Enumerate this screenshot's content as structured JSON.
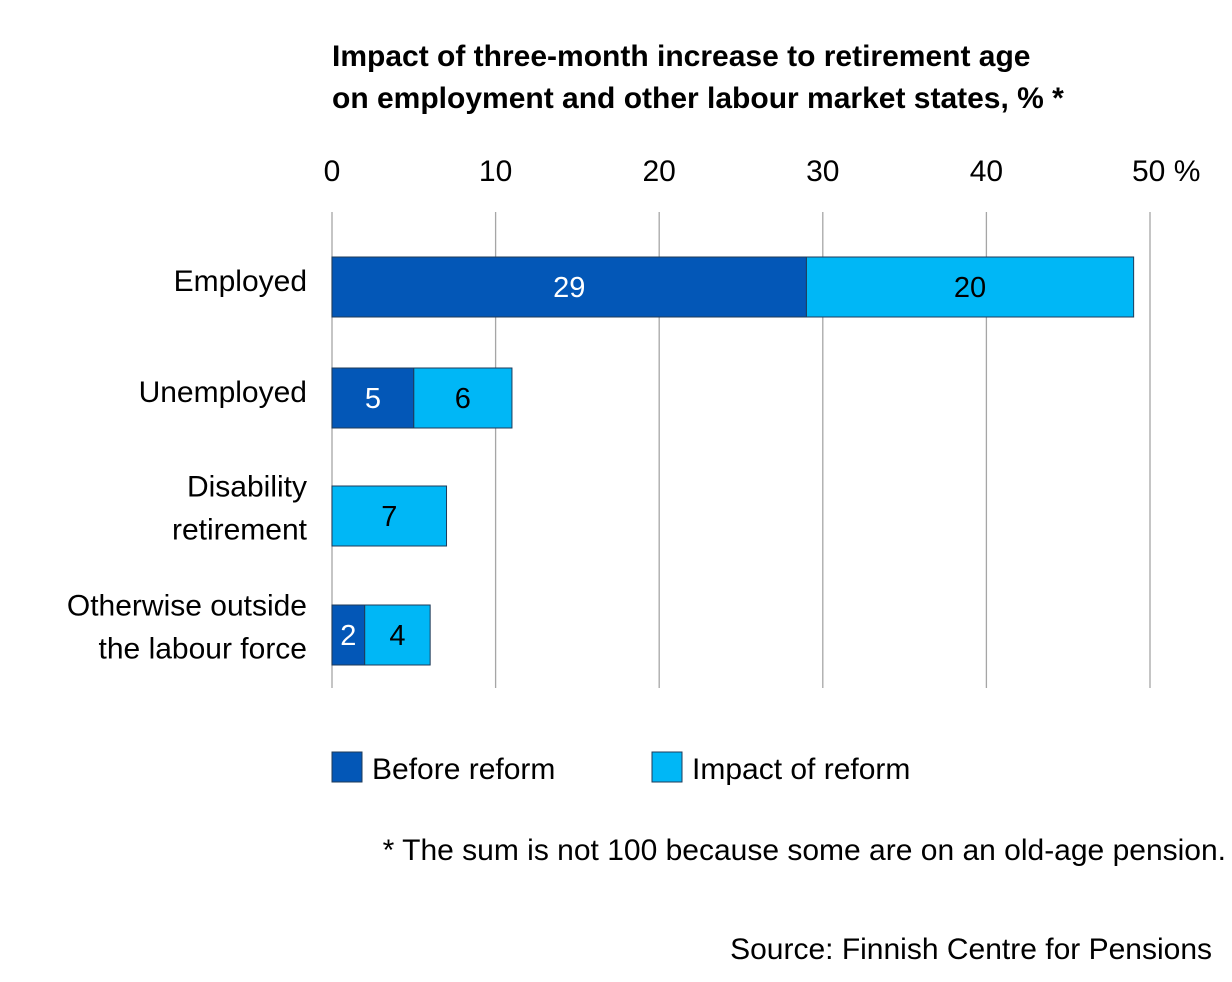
{
  "chart_data": {
    "type": "bar",
    "orientation": "horizontal",
    "stacked": true,
    "title_lines": [
      "Impact of three-month increase to retirement age",
      "on employment and other labour market states, % *"
    ],
    "categories": [
      [
        "Employed"
      ],
      [
        "Unemployed"
      ],
      [
        "Disability",
        "retirement"
      ],
      [
        "Otherwise outside",
        "the labour force"
      ]
    ],
    "series": [
      {
        "name": "Before reform",
        "color": "#0357b7",
        "label_color": "#ffffff",
        "values": [
          29,
          5,
          0,
          2
        ]
      },
      {
        "name": "Impact of reform",
        "color": "#00b7f6",
        "label_color": "#000000",
        "values": [
          20,
          6,
          7,
          4
        ]
      }
    ],
    "xlim": [
      0,
      50
    ],
    "x_ticks": [
      {
        "value": 0,
        "label": "0"
      },
      {
        "value": 10,
        "label": "10"
      },
      {
        "value": 20,
        "label": "20"
      },
      {
        "value": 30,
        "label": "30"
      },
      {
        "value": 40,
        "label": "40"
      },
      {
        "value": 50,
        "label": "50 %"
      }
    ],
    "gridlines": true,
    "legend_position": "bottom"
  },
  "footnote": "* The sum is not 100 because some are on an old-age pension.",
  "source": "Source: Finnish Centre for Pensions"
}
